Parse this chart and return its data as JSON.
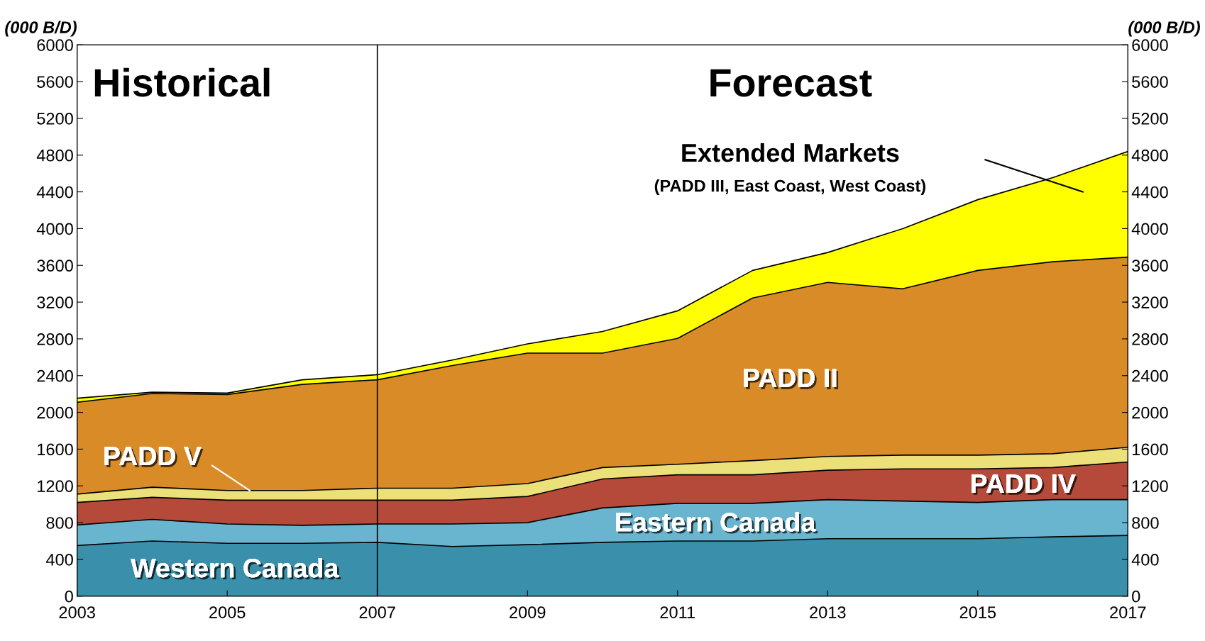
{
  "chart_data": {
    "type": "area",
    "stacked": true,
    "grid": false,
    "ylabel": "(000 B/D)",
    "y2label": "(000 B/D)",
    "x": [
      2003,
      2004,
      2005,
      2006,
      2007,
      2008,
      2009,
      2010,
      2011,
      2012,
      2013,
      2014,
      2015,
      2016,
      2017
    ],
    "xlim": [
      2003,
      2017
    ],
    "xticks": [
      2003,
      2005,
      2007,
      2009,
      2011,
      2013,
      2015,
      2017
    ],
    "ylim": [
      0,
      6000
    ],
    "yticks": [
      0,
      400,
      800,
      1200,
      1600,
      2000,
      2400,
      2800,
      3200,
      3600,
      4000,
      4400,
      4800,
      5200,
      5600,
      6000
    ],
    "y2lim": [
      0,
      6000
    ],
    "y2ticks": [
      0,
      400,
      800,
      1200,
      1600,
      2000,
      2400,
      2800,
      3200,
      3600,
      4000,
      4400,
      4800,
      5200,
      5600,
      6000
    ],
    "series": [
      {
        "name": "Western Canada",
        "color": "#3a8fab",
        "values": [
          550,
          600,
          575,
          575,
          585,
          540,
          560,
          585,
          600,
          600,
          625,
          625,
          625,
          645,
          660
        ]
      },
      {
        "name": "Eastern Canada",
        "color": "#69b5cf",
        "values": [
          225,
          235,
          210,
          195,
          200,
          245,
          240,
          375,
          410,
          410,
          425,
          410,
          395,
          405,
          390
        ]
      },
      {
        "name": "PADD IV",
        "color": "#b5493a",
        "values": [
          245,
          240,
          260,
          275,
          260,
          260,
          285,
          315,
          310,
          310,
          320,
          350,
          365,
          350,
          410
        ]
      },
      {
        "name": "PADD V",
        "color": "#ece07a",
        "values": [
          90,
          110,
          105,
          105,
          130,
          130,
          140,
          125,
          115,
          155,
          150,
          150,
          150,
          150,
          160
        ]
      },
      {
        "name": "PADD II",
        "color": "#d98b27",
        "values": [
          1000,
          1020,
          1045,
          1155,
          1180,
          1335,
          1420,
          1245,
          1370,
          1770,
          1895,
          1810,
          2010,
          2090,
          2070
        ]
      },
      {
        "name": "Extended Markets",
        "color": "#ffff00",
        "values": [
          45,
          15,
          15,
          50,
          55,
          60,
          100,
          235,
          300,
          300,
          325,
          655,
          770,
          915,
          1150
        ]
      }
    ],
    "ref_lines": [
      {
        "axis": "x",
        "value": 2007,
        "color": "#000000"
      }
    ],
    "annotations": [
      "Historical",
      "Forecast",
      "(PADD III, East Coast, West Coast)"
    ]
  }
}
